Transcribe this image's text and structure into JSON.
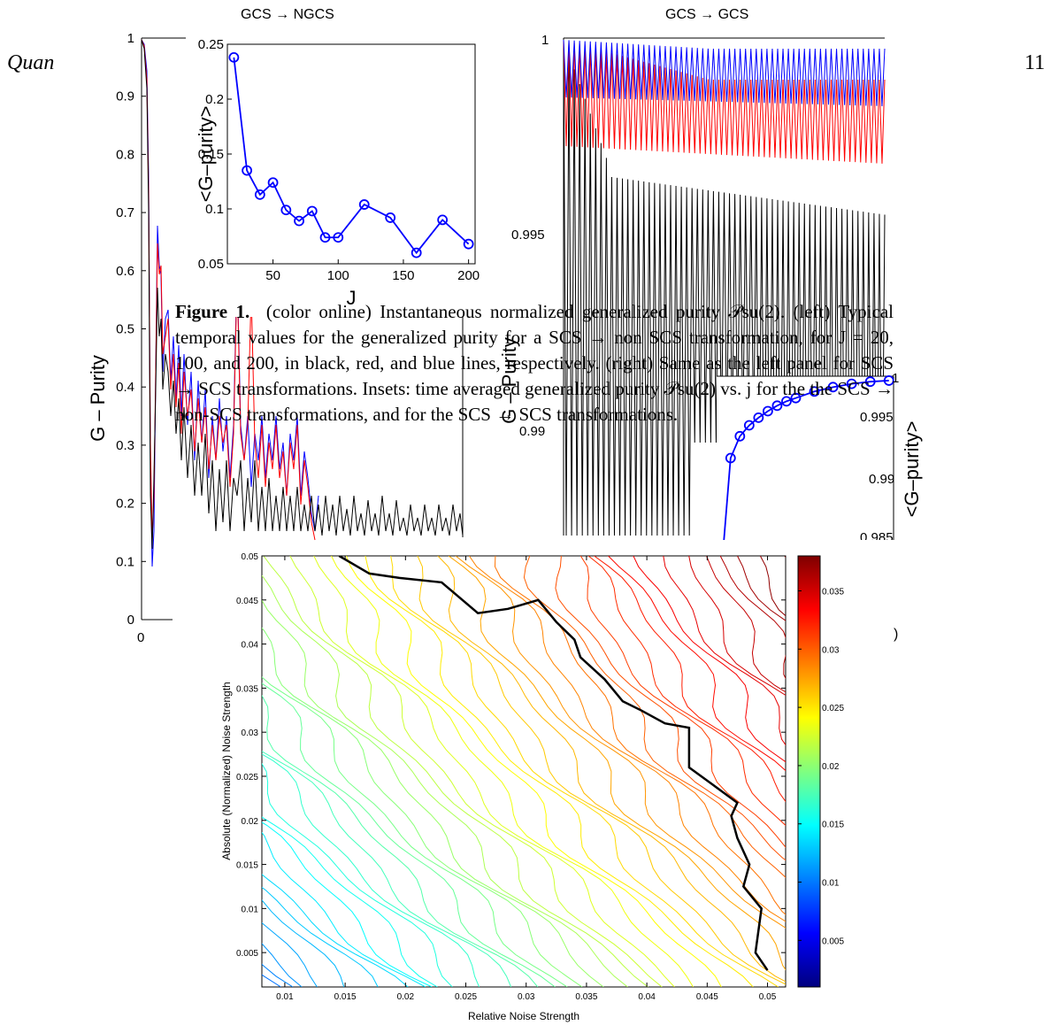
{
  "header": {
    "running_head": "Quan",
    "page_number": "11"
  },
  "left_panel": {
    "title": "GCS → NGCS",
    "ylabel": "G – Purity",
    "y_ticks": [
      "0",
      "0.1",
      "0.2",
      "0.3",
      "0.4",
      "0.5",
      "0.6",
      "0.7",
      "0.8",
      "0.9",
      "1"
    ],
    "x_ticks": [
      "0"
    ],
    "series_colors": [
      "#000000",
      "#ff0000",
      "#0000ff"
    ],
    "inset": {
      "ylabel": "<G–purity>",
      "xlabel": "J",
      "y_ticks": [
        "0.05",
        "0.1",
        "0.15",
        "0.2",
        "0.25"
      ],
      "x_ticks": [
        "50",
        "100",
        "150",
        "200"
      ],
      "chart_data": {
        "type": "line",
        "x": [
          20,
          30,
          40,
          50,
          60,
          70,
          80,
          90,
          100,
          120,
          140,
          160,
          180,
          200
        ],
        "values": [
          0.238,
          0.135,
          0.113,
          0.124,
          0.099,
          0.089,
          0.098,
          0.074,
          0.074,
          0.104,
          0.092,
          0.06,
          0.09,
          0.068
        ],
        "xlim": [
          15,
          205
        ],
        "ylim": [
          0.05,
          0.25
        ],
        "color": "#0000ff"
      }
    }
  },
  "right_panel": {
    "title": "GCS → GCS",
    "ylabel": "G – Purity",
    "y_ticks": [
      "0.99",
      "0.995",
      "1"
    ],
    "inset": {
      "ylabel": "<G–purity>",
      "y_ticks": [
        "0.985",
        "0.99",
        "0.995",
        "1"
      ],
      "chart_data": {
        "type": "line",
        "x": [
          20,
          30,
          40,
          50,
          60,
          70,
          80,
          90,
          100,
          120,
          140,
          160,
          180,
          200
        ],
        "values": [
          0.982,
          0.9925,
          0.9945,
          0.9955,
          0.9962,
          0.9968,
          0.9973,
          0.9977,
          0.998,
          0.9986,
          0.999,
          0.9993,
          0.9995,
          0.9996
        ],
        "ylim": [
          0.985,
          1.0
        ],
        "color": "#0000ff"
      }
    },
    "clipped_label": ")"
  },
  "caption": {
    "label": "Figure 1.",
    "text": "(color online) Instantaneous normalized generalized purity 𝒫su(2). (left) Typical temporal values for the generalized purity for a SCS → non SCS transformation, for J = 20, 100, and 200, in black, red, and blue lines, respectively. (right) Same as the left panel for SCS → SCS transformations. Insets: time averaged generalized purity 𝒫su(2) vs. j for the the SCS → non-SCS transformations, and for the SCS → SCS transformations."
  },
  "contour_plot": {
    "xlabel": "Relative Noise Strength",
    "ylabel": "Absolute (Normalized) Noise Strength",
    "x_ticks": [
      "0.01",
      "0.015",
      "0.02",
      "0.025",
      "0.03",
      "0.035",
      "0.04",
      "0.045",
      "0.05"
    ],
    "y_ticks": [
      "0.005",
      "0.01",
      "0.015",
      "0.02",
      "0.025",
      "0.03",
      "0.035",
      "0.04",
      "0.045",
      "0.05"
    ],
    "colorbar_ticks": [
      "0.005",
      "0.01",
      "0.015",
      "0.02",
      "0.025",
      "0.03",
      "0.035"
    ],
    "chart_data": {
      "type": "contour",
      "xlim": [
        0.0081,
        0.0515
      ],
      "ylim": [
        0.0011,
        0.05
      ],
      "zlim": [
        0.001,
        0.038
      ],
      "colormap": "jet",
      "highlight_contour": {
        "color": "#000000",
        "x": [
          0.0145,
          0.017,
          0.0195,
          0.023,
          0.026,
          0.0285,
          0.031,
          0.0325,
          0.034,
          0.0345,
          0.0365,
          0.038,
          0.0395,
          0.0415,
          0.0435,
          0.0435,
          0.0455,
          0.0475,
          0.047,
          0.0475,
          0.0485,
          0.048,
          0.0495,
          0.049,
          0.05
        ],
        "y": [
          0.05,
          0.048,
          0.0475,
          0.047,
          0.0435,
          0.044,
          0.045,
          0.0425,
          0.0405,
          0.0385,
          0.036,
          0.0335,
          0.0325,
          0.031,
          0.0305,
          0.026,
          0.024,
          0.022,
          0.0205,
          0.018,
          0.015,
          0.0125,
          0.01,
          0.005,
          0.003
        ]
      }
    }
  }
}
